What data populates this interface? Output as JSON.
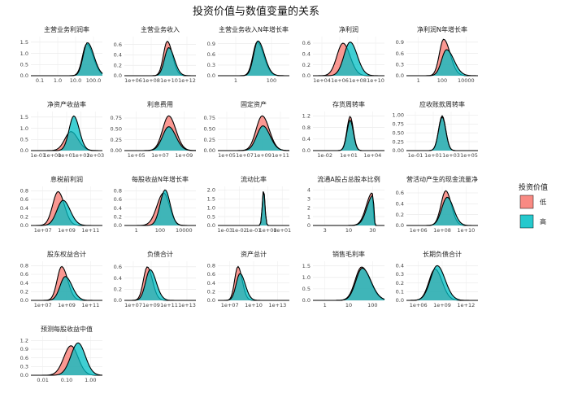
{
  "chart_data": {
    "type": "area",
    "title": "投资价值与数值变量的关系",
    "legend": {
      "title": "投资价值",
      "position": "right",
      "entries": [
        "低",
        "高"
      ]
    },
    "series_colors": {
      "低": "#F8766D",
      "高": "#00BFC4"
    },
    "grid": true,
    "panels": [
      {
        "title": "主营业务利润率",
        "x_ticks": [
          "0.1",
          "1.0",
          "10.0",
          "100.0"
        ],
        "y_ticks": [
          "0.0",
          "0.5",
          "1.0",
          "1.5"
        ],
        "y_max": 1.75,
        "low": {
          "peak": 0.78,
          "width": 0.07,
          "height": 1.42,
          "skew": 0.3
        },
        "high": {
          "peak": 0.79,
          "width": 0.07,
          "height": 1.48,
          "skew": 0.3
        }
      },
      {
        "title": "主营业务收入",
        "x_ticks": [
          "1e+06",
          "1e+08",
          "1e+10",
          "1e+12"
        ],
        "y_ticks": [
          "0.0",
          "0.2",
          "0.4",
          "0.6"
        ],
        "y_max": 0.75,
        "low": {
          "peak": 0.6,
          "width": 0.06,
          "height": 0.66,
          "skew": 0.2
        },
        "high": {
          "peak": 0.62,
          "width": 0.065,
          "height": 0.54,
          "skew": 0.2
        }
      },
      {
        "title": "主营业务收入N年增长率",
        "x_ticks": [
          "1",
          "100"
        ],
        "y_ticks": [
          "0.0",
          "0.3",
          "0.6",
          "0.9"
        ],
        "y_max": 1.1,
        "low": {
          "peak": 0.55,
          "width": 0.07,
          "height": 0.95,
          "skew": 0.3
        },
        "high": {
          "peak": 0.56,
          "width": 0.07,
          "height": 0.98,
          "skew": 0.3
        }
      },
      {
        "title": "净利润",
        "x_ticks": [
          "1e+04",
          "1e+06",
          "1e+08",
          "1e+10"
        ],
        "y_ticks": [
          "0.0",
          "0.2",
          "0.4",
          "0.6"
        ],
        "y_max": 0.72,
        "low": {
          "peak": 0.42,
          "width": 0.09,
          "height": 0.6,
          "skew": 0.1
        },
        "high": {
          "peak": 0.52,
          "width": 0.09,
          "height": 0.62,
          "skew": 0.1
        }
      },
      {
        "title": "净利润N年增长率",
        "x_ticks": [
          "1",
          "100",
          "10000"
        ],
        "y_ticks": [
          "0.0",
          "0.3",
          "0.6",
          "0.9"
        ],
        "y_max": 1.05,
        "low": {
          "peak": 0.52,
          "width": 0.07,
          "height": 0.98,
          "skew": 0.3
        },
        "high": {
          "peak": 0.56,
          "width": 0.08,
          "height": 0.7,
          "skew": 0.3
        }
      },
      {
        "title": "净资产收益率",
        "x_ticks": [
          "1e-01",
          "1e+00",
          "1e+01",
          "1e+02",
          "1e+03"
        ],
        "y_ticks": [
          "0.0",
          "0.5",
          "1.0",
          "1.5"
        ],
        "y_max": 1.75,
        "low": {
          "peak": 0.56,
          "width": 0.09,
          "height": 0.85,
          "skew": 0.1
        },
        "high": {
          "peak": 0.6,
          "width": 0.07,
          "height": 1.55,
          "skew": 0.1
        }
      },
      {
        "title": "利息费用",
        "x_ticks": [
          "1e+05",
          "1e+07",
          "1e+09"
        ],
        "y_ticks": [
          "0.00",
          "0.25",
          "0.50",
          "0.75"
        ],
        "y_max": 0.9,
        "low": {
          "peak": 0.62,
          "width": 0.09,
          "height": 0.8,
          "skew": 0.1
        },
        "high": {
          "peak": 0.62,
          "width": 0.09,
          "height": 0.55,
          "skew": 0.1
        }
      },
      {
        "title": "固定资产",
        "x_ticks": [
          "1e+05",
          "1e+07",
          "1e+09",
          "1e+11"
        ],
        "y_ticks": [
          "0.00",
          "0.25",
          "0.50",
          "0.75"
        ],
        "y_max": 0.9,
        "low": {
          "peak": 0.62,
          "width": 0.09,
          "height": 0.8,
          "skew": 0.1
        },
        "high": {
          "peak": 0.63,
          "width": 0.09,
          "height": 0.57,
          "skew": 0.1
        }
      },
      {
        "title": "存货周转率",
        "x_ticks": [
          "1e-02",
          "1e+01",
          "1e+04"
        ],
        "y_ticks": [
          "0.0",
          "0.4",
          "0.8",
          "1.2"
        ],
        "y_max": 1.35,
        "low": {
          "peak": 0.52,
          "width": 0.045,
          "height": 1.18,
          "skew": 0.0
        },
        "high": {
          "peak": 0.52,
          "width": 0.045,
          "height": 1.05,
          "skew": 0.0
        }
      },
      {
        "title": "应收账款周转率",
        "x_ticks": [
          "1e-01",
          "1e+01",
          "1e+03",
          "1e+05"
        ],
        "y_ticks": [
          "0.00",
          "0.25",
          "0.50",
          "0.75",
          "1.00"
        ],
        "y_max": 1.1,
        "low": {
          "peak": 0.5,
          "width": 0.05,
          "height": 0.98,
          "skew": 0.0
        },
        "high": {
          "peak": 0.5,
          "width": 0.05,
          "height": 0.95,
          "skew": 0.0
        }
      },
      {
        "title": "息税前利润",
        "x_ticks": [
          "1e+07",
          "1e+09",
          "1e+11"
        ],
        "y_ticks": [
          "0.0",
          "0.2",
          "0.4",
          "0.6",
          "0.8"
        ],
        "y_max": 0.9,
        "low": {
          "peak": 0.38,
          "width": 0.08,
          "height": 0.78,
          "skew": 0.1
        },
        "high": {
          "peak": 0.45,
          "width": 0.09,
          "height": 0.58,
          "skew": 0.1
        }
      },
      {
        "title": "每股收益N年增长率",
        "x_ticks": [
          "1",
          "100",
          "10000"
        ],
        "y_ticks": [
          "0.0",
          "0.2",
          "0.4",
          "0.6",
          "0.8"
        ],
        "y_max": 0.9,
        "low": {
          "peak": 0.55,
          "width": 0.09,
          "height": 0.75,
          "skew": -0.1
        },
        "high": {
          "peak": 0.57,
          "width": 0.07,
          "height": 0.82,
          "skew": 0.0
        }
      },
      {
        "title": "流动比率",
        "x_ticks": [
          "1e-03",
          "1e-02",
          "1e-01",
          "1e+00",
          "1e+01"
        ],
        "y_ticks": [
          "0.0",
          "0.5",
          "1.0",
          "1.5",
          "2.0"
        ],
        "y_max": 2.2,
        "low": {
          "peak": 0.64,
          "width": 0.018,
          "height": 2.05,
          "skew": 0.0
        },
        "high": {
          "peak": 0.64,
          "width": 0.018,
          "height": 1.98,
          "skew": 0.0
        }
      },
      {
        "title": "流通A股占总股本比例",
        "x_ticks": [
          "3",
          "10",
          "30"
        ],
        "y_ticks": [
          "0",
          "1",
          "2",
          "3",
          "4"
        ],
        "y_max": 4.4,
        "low": {
          "peak": 0.83,
          "width": 0.06,
          "height": 3.7,
          "skew": -0.8
        },
        "high": {
          "peak": 0.84,
          "width": 0.06,
          "height": 3.4,
          "skew": -0.8
        }
      },
      {
        "title": "营活动产生的现金流量净",
        "x_ticks": [
          "1e+06",
          "1e+08",
          "1e+10"
        ],
        "y_ticks": [
          "0.0",
          "0.2",
          "0.4",
          "0.6"
        ],
        "y_max": 0.72,
        "low": {
          "peak": 0.55,
          "width": 0.07,
          "height": 0.64,
          "skew": 0.1
        },
        "high": {
          "peak": 0.57,
          "width": 0.08,
          "height": 0.52,
          "skew": 0.1
        }
      },
      {
        "title": "股东权益合计",
        "x_ticks": [
          "1e+07",
          "1e+09",
          "1e+11"
        ],
        "y_ticks": [
          "0.0",
          "0.2",
          "0.4",
          "0.6",
          "0.8"
        ],
        "y_max": 0.9,
        "low": {
          "peak": 0.43,
          "width": 0.07,
          "height": 0.78,
          "skew": 0.2
        },
        "high": {
          "peak": 0.48,
          "width": 0.08,
          "height": 0.55,
          "skew": 0.2
        }
      },
      {
        "title": "负债合计",
        "x_ticks": [
          "1e+07",
          "1e+09",
          "1e+11",
          "1e+13"
        ],
        "y_ticks": [
          "0.0",
          "0.2",
          "0.4",
          "0.6"
        ],
        "y_max": 0.7,
        "low": {
          "peak": 0.32,
          "width": 0.06,
          "height": 0.6,
          "skew": 0.2
        },
        "high": {
          "peak": 0.36,
          "width": 0.07,
          "height": 0.55,
          "skew": 0.2
        }
      },
      {
        "title": "资产总计",
        "x_ticks": [
          "1e+07",
          "1e+10",
          "1e+13"
        ],
        "y_ticks": [
          "0.0",
          "0.2",
          "0.4",
          "0.6",
          "0.8"
        ],
        "y_max": 0.9,
        "low": {
          "peak": 0.28,
          "width": 0.05,
          "height": 0.78,
          "skew": 0.2
        },
        "high": {
          "peak": 0.31,
          "width": 0.06,
          "height": 0.62,
          "skew": 0.2
        }
      },
      {
        "title": "销售毛利率",
        "x_ticks": [
          "1",
          "10",
          "100"
        ],
        "y_ticks": [
          "0.0",
          "0.5",
          "1.0",
          "1.5"
        ],
        "y_max": 1.7,
        "low": {
          "peak": 0.68,
          "width": 0.1,
          "height": 1.45,
          "skew": 0.2
        },
        "high": {
          "peak": 0.69,
          "width": 0.1,
          "height": 1.4,
          "skew": 0.2
        }
      },
      {
        "title": "长期负债合计",
        "x_ticks": [
          "1e+06",
          "1e+09",
          "1e+12"
        ],
        "y_ticks": [
          "0.0",
          "0.1",
          "0.2",
          "0.3",
          "0.4"
        ],
        "y_max": 0.45,
        "low": {
          "peak": 0.4,
          "width": 0.09,
          "height": 0.36,
          "skew": 0.1
        },
        "high": {
          "peak": 0.43,
          "width": 0.1,
          "height": 0.4,
          "skew": 0.1
        }
      },
      {
        "title": "预测每股收益中值",
        "x_ticks": [
          "0.01",
          "0.10",
          "1.00"
        ],
        "y_ticks": [
          "0.0",
          "0.3",
          "0.6",
          "0.9",
          "1.2"
        ],
        "y_max": 1.35,
        "low": {
          "peak": 0.56,
          "width": 0.1,
          "height": 1.02,
          "skew": 0.0
        },
        "high": {
          "peak": 0.66,
          "width": 0.1,
          "height": 1.12,
          "skew": 0.0
        }
      }
    ]
  }
}
